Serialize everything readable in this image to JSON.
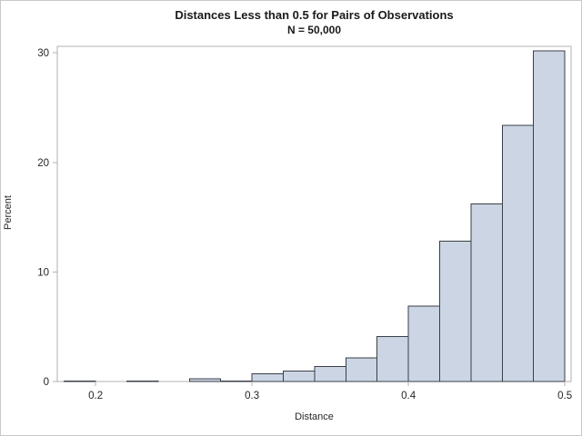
{
  "chart_data": {
    "type": "bar",
    "subtype": "histogram",
    "title": "Distances Less than 0.5 for Pairs of Observations",
    "subtitle": "N = 50,000",
    "xlabel": "Distance",
    "ylabel": "Percent",
    "bin_start": 0.18,
    "bin_width": 0.02,
    "bin_edges": [
      0.18,
      0.2,
      0.22,
      0.24,
      0.26,
      0.28,
      0.3,
      0.32,
      0.34,
      0.36,
      0.38,
      0.4,
      0.42,
      0.44,
      0.46,
      0.48,
      0.5
    ],
    "values": [
      0.05,
      0,
      0.05,
      0,
      0.25,
      0.05,
      0.7,
      0.95,
      1.35,
      2.15,
      4.1,
      6.9,
      12.8,
      16.2,
      23.4,
      30.2
    ],
    "x_ticks": [
      0.2,
      0.3,
      0.4,
      0.5
    ],
    "x_tick_labels": [
      "0.2",
      "0.3",
      "0.4",
      "0.5"
    ],
    "y_ticks": [
      0,
      10,
      20,
      30
    ],
    "y_tick_labels": [
      "0",
      "10",
      "20",
      "30"
    ],
    "xlim": [
      0.1755,
      0.504
    ],
    "ylim": [
      0,
      30.6
    ],
    "grid": false,
    "legend": false,
    "colors": {
      "bar_fill": "#cbd5e3",
      "bar_stroke": "#3a3f47",
      "axis_line": "#b1b1b1",
      "tick_text": "#262626",
      "title_text": "#1a1a1a",
      "figure_border": "#c9c9c9",
      "background": "#ffffff"
    }
  }
}
